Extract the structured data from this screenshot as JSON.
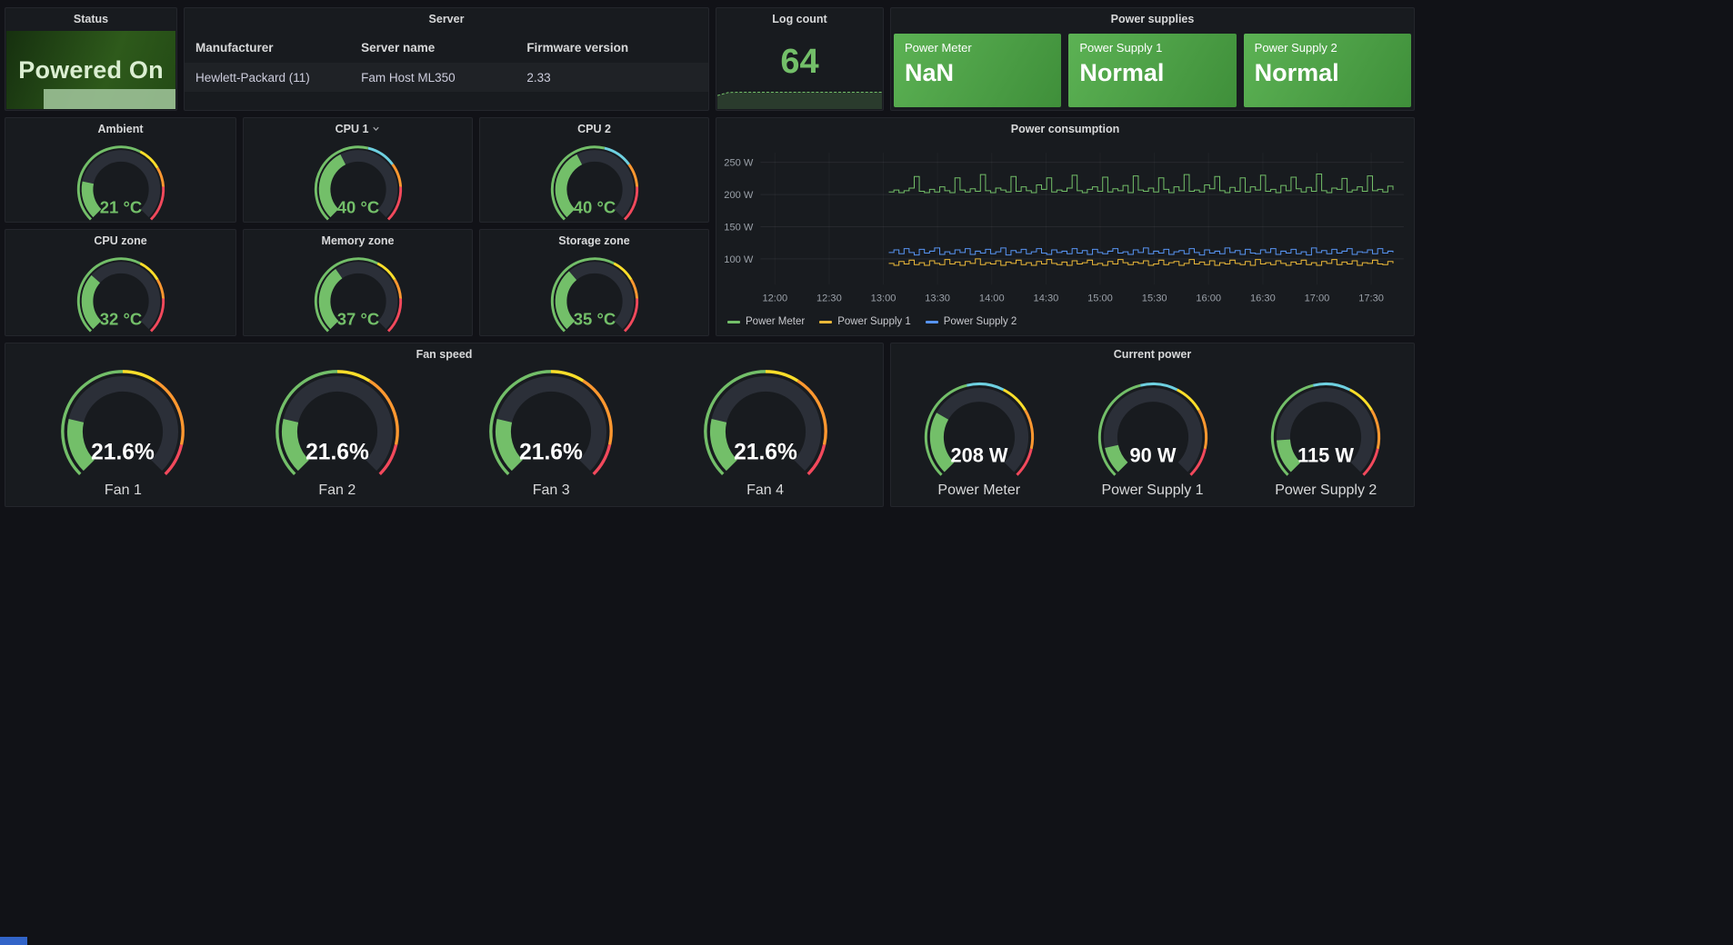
{
  "theme": {
    "background": "#111217",
    "panel_bg": "#181b1f",
    "panel_border": "#24262c",
    "title_color": "#d8d9da",
    "text_color": "#ccccdc",
    "green": "#73BF69",
    "yellow": "#EAB839",
    "blue": "#5794F2",
    "cyan": "#6ED0E0",
    "orange": "#FF9830",
    "red": "#F2495C",
    "gauge_track": "#2b2f38",
    "status_spark_fill": "#9fc49a",
    "supply_gradient_start": "#5cb254",
    "supply_gradient_end": "#3f8f3a",
    "taskbar_blue": "#3264c8"
  },
  "gauge_schemes": {
    "temp": [
      {
        "to": 0.6,
        "color": "#73BF69"
      },
      {
        "to": 0.72,
        "color": "#FADE2A"
      },
      {
        "to": 0.82,
        "color": "#FF9830"
      },
      {
        "to": 1.0,
        "color": "#F2495C"
      }
    ],
    "cpu": [
      {
        "to": 0.55,
        "color": "#73BF69"
      },
      {
        "to": 0.7,
        "color": "#6ED0E0"
      },
      {
        "to": 0.82,
        "color": "#FF9830"
      },
      {
        "to": 1.0,
        "color": "#F2495C"
      }
    ],
    "fan": [
      {
        "to": 0.5,
        "color": "#73BF69"
      },
      {
        "to": 0.62,
        "color": "#FADE2A"
      },
      {
        "to": 0.88,
        "color": "#FF9830"
      },
      {
        "to": 1.0,
        "color": "#F2495C"
      }
    ],
    "power": [
      {
        "to": 0.45,
        "color": "#73BF69"
      },
      {
        "to": 0.6,
        "color": "#6ED0E0"
      },
      {
        "to": 0.72,
        "color": "#FADE2A"
      },
      {
        "to": 0.88,
        "color": "#FF9830"
      },
      {
        "to": 1.0,
        "color": "#F2495C"
      }
    ]
  },
  "panels": {
    "status": {
      "title": "Status",
      "value": "Powered On"
    },
    "server": {
      "title": "Server",
      "columns": [
        "Manufacturer",
        "Server name",
        "Firmware version"
      ],
      "rows": [
        [
          "Hewlett-Packard (11)",
          "Fam Host ML350",
          "2.33"
        ]
      ]
    },
    "log_count": {
      "title": "Log count",
      "value": "64",
      "sparkline": [
        50,
        63,
        64,
        64,
        64,
        64,
        64,
        64,
        64,
        64,
        64,
        64,
        64,
        64,
        64,
        64
      ]
    },
    "power_supplies": {
      "title": "Power supplies",
      "stats": [
        {
          "label": "Power Meter",
          "value": "NaN"
        },
        {
          "label": "Power Supply 1",
          "value": "Normal"
        },
        {
          "label": "Power Supply 2",
          "value": "Normal"
        }
      ]
    },
    "small_gauges": [
      {
        "title": "Ambient",
        "value": 21,
        "max": 100,
        "display": "21 °C",
        "scheme": "temp"
      },
      {
        "title": "CPU 1",
        "value": 40,
        "max": 100,
        "display": "40 °C",
        "scheme": "cpu",
        "menu": true
      },
      {
        "title": "CPU 2",
        "value": 40,
        "max": 100,
        "display": "40 °C",
        "scheme": "cpu"
      },
      {
        "title": "CPU zone",
        "value": 32,
        "max": 100,
        "display": "32 °C",
        "scheme": "temp"
      },
      {
        "title": "Memory zone",
        "value": 37,
        "max": 100,
        "display": "37 °C",
        "scheme": "temp"
      },
      {
        "title": "Storage zone",
        "value": 35,
        "max": 100,
        "display": "35 °C",
        "scheme": "temp"
      }
    ],
    "fan_speed": {
      "title": "Fan speed",
      "gauges": [
        {
          "label": "Fan 1",
          "value": 21.6,
          "max": 100,
          "display": "21.6%",
          "scheme": "fan"
        },
        {
          "label": "Fan 2",
          "value": 21.6,
          "max": 100,
          "display": "21.6%",
          "scheme": "fan"
        },
        {
          "label": "Fan 3",
          "value": 21.6,
          "max": 100,
          "display": "21.6%",
          "scheme": "fan"
        },
        {
          "label": "Fan 4",
          "value": 21.6,
          "max": 100,
          "display": "21.6%",
          "scheme": "fan"
        }
      ]
    },
    "current_power": {
      "title": "Current power",
      "gauges": [
        {
          "label": "Power Meter",
          "value": 208,
          "max": 750,
          "display": "208 W",
          "scheme": "power"
        },
        {
          "label": "Power Supply 1",
          "value": 90,
          "max": 750,
          "display": "90 W",
          "scheme": "power"
        },
        {
          "label": "Power Supply 2",
          "value": 115,
          "max": 750,
          "display": "115 W",
          "scheme": "power"
        }
      ]
    },
    "power_consumption": {
      "title": "Power consumption"
    }
  },
  "chart_data": {
    "type": "line",
    "title": "Power consumption",
    "xlabel": "",
    "ylabel": "",
    "y_unit": "W",
    "ylim": [
      60,
      265
    ],
    "y_ticks": [
      100,
      150,
      200,
      250
    ],
    "x_ticks": [
      "12:00",
      "12:30",
      "13:00",
      "13:30",
      "14:00",
      "14:30",
      "15:00",
      "15:30",
      "16:00",
      "16:30",
      "17:00",
      "17:30"
    ],
    "x_tick_minutes": [
      720,
      750,
      780,
      810,
      840,
      870,
      900,
      930,
      960,
      990,
      1020,
      1050
    ],
    "x_domain_minutes": [
      712,
      1068
    ],
    "data_start_minute": 783,
    "data_end_minute": 1062,
    "grid": true,
    "legend_position": "bottom",
    "series": [
      {
        "name": "Power Meter",
        "color": "#73BF69",
        "values": [
          204,
          207,
          203,
          206,
          210,
          228,
          205,
          203,
          208,
          204,
          212,
          206,
          203,
          226,
          207,
          204,
          209,
          205,
          231,
          206,
          203,
          210,
          207,
          204,
          228,
          205,
          212,
          206,
          203,
          215,
          208,
          226,
          204,
          207,
          205,
          210,
          230,
          206,
          203,
          208,
          212,
          205,
          227,
          204,
          209,
          206,
          214,
          203,
          229,
          207,
          205,
          210,
          204,
          226,
          208,
          203,
          212,
          206,
          231,
          205,
          207,
          204,
          215,
          209,
          228,
          206,
          203,
          211,
          205,
          226,
          204,
          212,
          207,
          230,
          205,
          208,
          203,
          214,
          206,
          227,
          209,
          204,
          211,
          205,
          232,
          206,
          203,
          210,
          208,
          225,
          204,
          207,
          212,
          205,
          229,
          206,
          208,
          204,
          213,
          207
        ]
      },
      {
        "name": "Power Supply 1",
        "color": "#EAB839",
        "values": [
          93,
          90,
          96,
          92,
          98,
          91,
          94,
          90,
          97,
          93,
          91,
          99,
          92,
          95,
          90,
          96,
          93,
          100,
          91,
          94,
          92,
          97,
          90,
          95,
          93,
          98,
          91,
          94,
          90,
          96,
          92,
          99,
          93,
          91,
          95,
          90,
          97,
          92,
          94,
          98,
          91,
          93,
          90,
          96,
          92,
          99,
          94,
          91,
          95,
          93,
          97,
          90,
          92,
          98,
          91,
          94,
          96,
          90,
          93,
          99,
          92,
          95,
          91,
          97,
          90,
          94,
          92,
          98,
          93,
          91,
          96,
          90,
          99,
          92,
          94,
          91,
          97,
          93,
          90,
          95,
          92,
          98,
          91,
          94,
          90,
          96,
          93,
          99,
          91,
          95,
          92,
          97,
          90,
          94,
          93,
          98,
          92,
          91,
          96,
          93
        ]
      },
      {
        "name": "Power Supply 2",
        "color": "#5794F2",
        "values": [
          110,
          114,
          108,
          116,
          110,
          106,
          115,
          109,
          112,
          117,
          107,
          111,
          108,
          114,
          110,
          116,
          107,
          112,
          109,
          115,
          108,
          111,
          117,
          106,
          113,
          110,
          115,
          108,
          111,
          116,
          109,
          107,
          114,
          110,
          112,
          108,
          116,
          109,
          113,
          107,
          115,
          110,
          108,
          112,
          116,
          109,
          111,
          107,
          114,
          110,
          117,
          108,
          112,
          109,
          115,
          107,
          111,
          113,
          108,
          116,
          110,
          106,
          114,
          109,
          112,
          108,
          117,
          110,
          113,
          107,
          115,
          109,
          108,
          114,
          110,
          116,
          107,
          112,
          109,
          115,
          108,
          111,
          106,
          117,
          110,
          113,
          108,
          115,
          109,
          112,
          116,
          107,
          111,
          110,
          114,
          108,
          116,
          109,
          112,
          110
        ]
      }
    ]
  }
}
